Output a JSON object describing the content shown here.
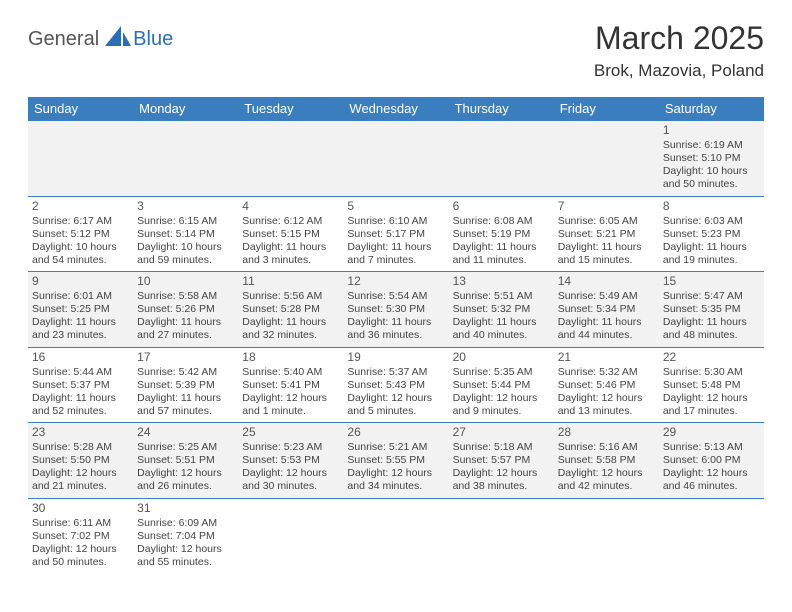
{
  "logo": {
    "textA": "General",
    "textB": "Blue"
  },
  "title": "March 2025",
  "location": "Brok, Mazovia, Poland",
  "colors": {
    "header_bg": "#3a7ebf",
    "header_text": "#ffffff",
    "row_alt_bg": "#f2f2f2",
    "cell_border": "#3a7ebf",
    "text": "#444444",
    "logo_blue": "#2a6fb5"
  },
  "day_headers": [
    "Sunday",
    "Monday",
    "Tuesday",
    "Wednesday",
    "Thursday",
    "Friday",
    "Saturday"
  ],
  "weeks": [
    [
      null,
      null,
      null,
      null,
      null,
      null,
      {
        "n": "1",
        "sr": "Sunrise: 6:19 AM",
        "ss": "Sunset: 5:10 PM",
        "d1": "Daylight: 10 hours",
        "d2": "and 50 minutes."
      }
    ],
    [
      {
        "n": "2",
        "sr": "Sunrise: 6:17 AM",
        "ss": "Sunset: 5:12 PM",
        "d1": "Daylight: 10 hours",
        "d2": "and 54 minutes."
      },
      {
        "n": "3",
        "sr": "Sunrise: 6:15 AM",
        "ss": "Sunset: 5:14 PM",
        "d1": "Daylight: 10 hours",
        "d2": "and 59 minutes."
      },
      {
        "n": "4",
        "sr": "Sunrise: 6:12 AM",
        "ss": "Sunset: 5:15 PM",
        "d1": "Daylight: 11 hours",
        "d2": "and 3 minutes."
      },
      {
        "n": "5",
        "sr": "Sunrise: 6:10 AM",
        "ss": "Sunset: 5:17 PM",
        "d1": "Daylight: 11 hours",
        "d2": "and 7 minutes."
      },
      {
        "n": "6",
        "sr": "Sunrise: 6:08 AM",
        "ss": "Sunset: 5:19 PM",
        "d1": "Daylight: 11 hours",
        "d2": "and 11 minutes."
      },
      {
        "n": "7",
        "sr": "Sunrise: 6:05 AM",
        "ss": "Sunset: 5:21 PM",
        "d1": "Daylight: 11 hours",
        "d2": "and 15 minutes."
      },
      {
        "n": "8",
        "sr": "Sunrise: 6:03 AM",
        "ss": "Sunset: 5:23 PM",
        "d1": "Daylight: 11 hours",
        "d2": "and 19 minutes."
      }
    ],
    [
      {
        "n": "9",
        "sr": "Sunrise: 6:01 AM",
        "ss": "Sunset: 5:25 PM",
        "d1": "Daylight: 11 hours",
        "d2": "and 23 minutes."
      },
      {
        "n": "10",
        "sr": "Sunrise: 5:58 AM",
        "ss": "Sunset: 5:26 PM",
        "d1": "Daylight: 11 hours",
        "d2": "and 27 minutes."
      },
      {
        "n": "11",
        "sr": "Sunrise: 5:56 AM",
        "ss": "Sunset: 5:28 PM",
        "d1": "Daylight: 11 hours",
        "d2": "and 32 minutes."
      },
      {
        "n": "12",
        "sr": "Sunrise: 5:54 AM",
        "ss": "Sunset: 5:30 PM",
        "d1": "Daylight: 11 hours",
        "d2": "and 36 minutes."
      },
      {
        "n": "13",
        "sr": "Sunrise: 5:51 AM",
        "ss": "Sunset: 5:32 PM",
        "d1": "Daylight: 11 hours",
        "d2": "and 40 minutes."
      },
      {
        "n": "14",
        "sr": "Sunrise: 5:49 AM",
        "ss": "Sunset: 5:34 PM",
        "d1": "Daylight: 11 hours",
        "d2": "and 44 minutes."
      },
      {
        "n": "15",
        "sr": "Sunrise: 5:47 AM",
        "ss": "Sunset: 5:35 PM",
        "d1": "Daylight: 11 hours",
        "d2": "and 48 minutes."
      }
    ],
    [
      {
        "n": "16",
        "sr": "Sunrise: 5:44 AM",
        "ss": "Sunset: 5:37 PM",
        "d1": "Daylight: 11 hours",
        "d2": "and 52 minutes."
      },
      {
        "n": "17",
        "sr": "Sunrise: 5:42 AM",
        "ss": "Sunset: 5:39 PM",
        "d1": "Daylight: 11 hours",
        "d2": "and 57 minutes."
      },
      {
        "n": "18",
        "sr": "Sunrise: 5:40 AM",
        "ss": "Sunset: 5:41 PM",
        "d1": "Daylight: 12 hours",
        "d2": "and 1 minute."
      },
      {
        "n": "19",
        "sr": "Sunrise: 5:37 AM",
        "ss": "Sunset: 5:43 PM",
        "d1": "Daylight: 12 hours",
        "d2": "and 5 minutes."
      },
      {
        "n": "20",
        "sr": "Sunrise: 5:35 AM",
        "ss": "Sunset: 5:44 PM",
        "d1": "Daylight: 12 hours",
        "d2": "and 9 minutes."
      },
      {
        "n": "21",
        "sr": "Sunrise: 5:32 AM",
        "ss": "Sunset: 5:46 PM",
        "d1": "Daylight: 12 hours",
        "d2": "and 13 minutes."
      },
      {
        "n": "22",
        "sr": "Sunrise: 5:30 AM",
        "ss": "Sunset: 5:48 PM",
        "d1": "Daylight: 12 hours",
        "d2": "and 17 minutes."
      }
    ],
    [
      {
        "n": "23",
        "sr": "Sunrise: 5:28 AM",
        "ss": "Sunset: 5:50 PM",
        "d1": "Daylight: 12 hours",
        "d2": "and 21 minutes."
      },
      {
        "n": "24",
        "sr": "Sunrise: 5:25 AM",
        "ss": "Sunset: 5:51 PM",
        "d1": "Daylight: 12 hours",
        "d2": "and 26 minutes."
      },
      {
        "n": "25",
        "sr": "Sunrise: 5:23 AM",
        "ss": "Sunset: 5:53 PM",
        "d1": "Daylight: 12 hours",
        "d2": "and 30 minutes."
      },
      {
        "n": "26",
        "sr": "Sunrise: 5:21 AM",
        "ss": "Sunset: 5:55 PM",
        "d1": "Daylight: 12 hours",
        "d2": "and 34 minutes."
      },
      {
        "n": "27",
        "sr": "Sunrise: 5:18 AM",
        "ss": "Sunset: 5:57 PM",
        "d1": "Daylight: 12 hours",
        "d2": "and 38 minutes."
      },
      {
        "n": "28",
        "sr": "Sunrise: 5:16 AM",
        "ss": "Sunset: 5:58 PM",
        "d1": "Daylight: 12 hours",
        "d2": "and 42 minutes."
      },
      {
        "n": "29",
        "sr": "Sunrise: 5:13 AM",
        "ss": "Sunset: 6:00 PM",
        "d1": "Daylight: 12 hours",
        "d2": "and 46 minutes."
      }
    ],
    [
      {
        "n": "30",
        "sr": "Sunrise: 6:11 AM",
        "ss": "Sunset: 7:02 PM",
        "d1": "Daylight: 12 hours",
        "d2": "and 50 minutes."
      },
      {
        "n": "31",
        "sr": "Sunrise: 6:09 AM",
        "ss": "Sunset: 7:04 PM",
        "d1": "Daylight: 12 hours",
        "d2": "and 55 minutes."
      },
      null,
      null,
      null,
      null,
      null
    ]
  ]
}
